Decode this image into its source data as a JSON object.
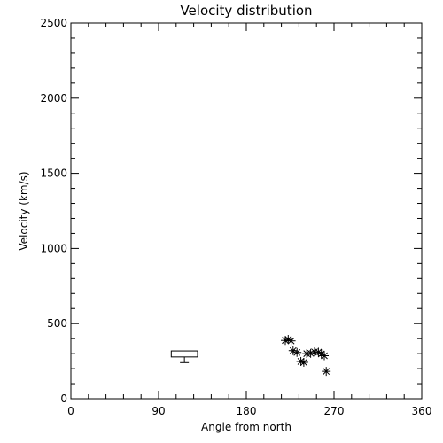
{
  "chart_data": {
    "type": "scatter",
    "title": "Velocity distribution",
    "xlabel": "Angle from north",
    "ylabel": "Velocity (km/s)",
    "xlim": [
      0,
      360
    ],
    "ylim": [
      0,
      2500
    ],
    "x_ticks": [
      0,
      90,
      180,
      270,
      360
    ],
    "y_ticks": [
      0,
      500,
      1000,
      1500,
      2000,
      2500
    ],
    "grid": false,
    "marker": "asterisk",
    "points": [
      {
        "x": 220,
        "y": 388
      },
      {
        "x": 223,
        "y": 395
      },
      {
        "x": 226,
        "y": 385
      },
      {
        "x": 228,
        "y": 320
      },
      {
        "x": 232,
        "y": 308
      },
      {
        "x": 236,
        "y": 248
      },
      {
        "x": 239,
        "y": 242
      },
      {
        "x": 242,
        "y": 300
      },
      {
        "x": 246,
        "y": 302
      },
      {
        "x": 250,
        "y": 312
      },
      {
        "x": 254,
        "y": 310
      },
      {
        "x": 257,
        "y": 298
      },
      {
        "x": 260,
        "y": 286
      },
      {
        "x": 262,
        "y": 182
      }
    ],
    "boxplot": {
      "x_from": 103,
      "x_to": 130,
      "q1": 278,
      "median": 298,
      "q3": 318,
      "whisker_low": 240
    }
  }
}
